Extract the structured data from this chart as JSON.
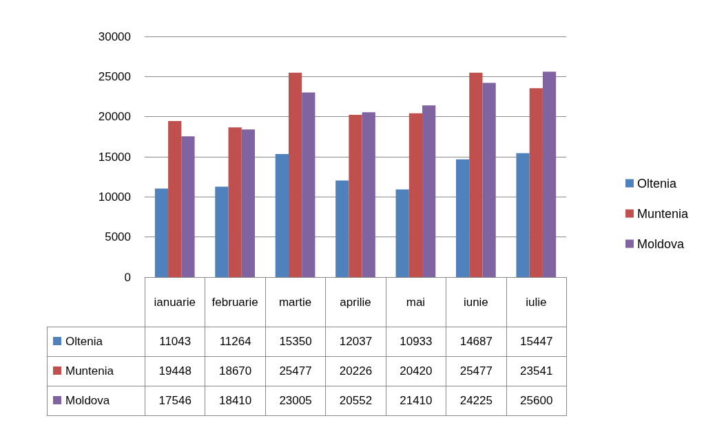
{
  "chart_data": {
    "type": "bar",
    "categories": [
      "ianuarie",
      "februarie",
      "martie",
      "aprilie",
      "mai",
      "iunie",
      "iulie"
    ],
    "series": [
      {
        "name": "Oltenia",
        "color": "#4f81bd",
        "values": [
          11043,
          11264,
          15350,
          12037,
          10933,
          14687,
          15447
        ]
      },
      {
        "name": "Muntenia",
        "color": "#c0504d",
        "values": [
          19448,
          18670,
          25477,
          20226,
          20420,
          25477,
          23541
        ]
      },
      {
        "name": "Moldova",
        "color": "#8064a2",
        "values": [
          17546,
          18410,
          23005,
          20552,
          21410,
          24225,
          25600
        ]
      }
    ],
    "ylim": [
      0,
      30000
    ],
    "yticks": [
      0,
      5000,
      10000,
      15000,
      20000,
      25000,
      30000
    ],
    "grid": "y",
    "legend": "right",
    "data_labels": true
  }
}
